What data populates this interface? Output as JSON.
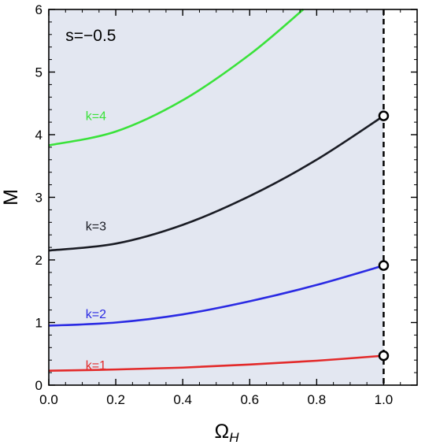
{
  "chart_data": {
    "type": "line",
    "title": "",
    "annotation": "s=−0.5",
    "xlabel": "Ω",
    "xlabel_subscript": "H",
    "ylabel": "M",
    "xlim": [
      0.0,
      1.1
    ],
    "ylim": [
      0,
      6
    ],
    "xticks": [
      "0.0",
      "0.2",
      "0.4",
      "0.6",
      "0.8",
      "1.0"
    ],
    "yticks": [
      "0",
      "1",
      "2",
      "3",
      "4",
      "5",
      "6"
    ],
    "shaded_region": {
      "x": [
        0.0,
        1.0
      ],
      "color": "#e3e7f1"
    },
    "vertical_dashed_line": {
      "x": 1.0,
      "color": "#000000"
    },
    "series": [
      {
        "name": "k=1",
        "color": "#e32a2a",
        "x": [
          0.0,
          0.2,
          0.4,
          0.6,
          0.8,
          1.0
        ],
        "y": [
          0.23,
          0.25,
          0.28,
          0.33,
          0.39,
          0.47
        ],
        "endpoint": [
          1.0,
          0.47
        ]
      },
      {
        "name": "k=2",
        "color": "#2a2ae3",
        "x": [
          0.0,
          0.2,
          0.4,
          0.6,
          0.8,
          1.0
        ],
        "y": [
          0.95,
          1.0,
          1.13,
          1.34,
          1.6,
          1.91
        ],
        "endpoint": [
          1.0,
          1.91
        ]
      },
      {
        "name": "k=3",
        "color": "#1a1c24",
        "x": [
          0.0,
          0.2,
          0.4,
          0.6,
          0.8,
          1.0
        ],
        "y": [
          2.15,
          2.26,
          2.56,
          3.02,
          3.6,
          4.3
        ],
        "endpoint": [
          1.0,
          4.3
        ]
      },
      {
        "name": "k=4",
        "color": "#3ae23a",
        "x": [
          0.0,
          0.2,
          0.4,
          0.6,
          0.76
        ],
        "y": [
          3.83,
          4.05,
          4.55,
          5.28,
          6.0
        ],
        "endpoint": null
      }
    ],
    "legend": "inline labels"
  }
}
